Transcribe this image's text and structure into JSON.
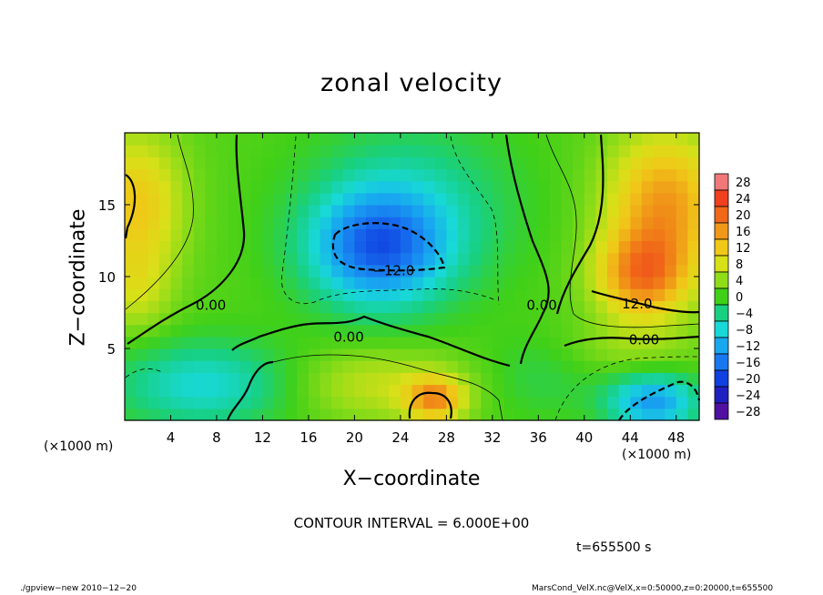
{
  "chart_data": {
    "type": "heatmap",
    "title": "zonal velocity",
    "xlabel": "X−coordinate",
    "ylabel": "Z−coordinate",
    "x_unit_left": "(×1000 m)",
    "x_unit_right": "(×1000 m)",
    "xlim": [
      0,
      50
    ],
    "ylim": [
      0,
      20
    ],
    "xticks": [
      4,
      8,
      12,
      16,
      20,
      24,
      28,
      32,
      36,
      40,
      44,
      48
    ],
    "yticks": [
      5,
      10,
      15
    ],
    "colorbar": {
      "levels": [
        28,
        24,
        20,
        16,
        12,
        8,
        4,
        0,
        -4,
        -8,
        -12,
        -16,
        -20,
        -24,
        -28
      ],
      "labels": [
        "28",
        "24",
        "20",
        "16",
        "12",
        "8",
        "4",
        "0",
        "−4",
        "−8",
        "−12",
        "−16",
        "−20",
        "−24",
        "−28"
      ],
      "colors": [
        "#f07878",
        "#f04020",
        "#f06818",
        "#f09818",
        "#f0c818",
        "#d8e018",
        "#90dc18",
        "#40d018",
        "#18d080",
        "#18d8d8",
        "#18a8f0",
        "#1878f0",
        "#1040e0",
        "#2020c0",
        "#5010a0"
      ]
    },
    "contour_labels": [
      {
        "text": "0.00",
        "x": 7.5,
        "y": 8.0
      },
      {
        "text": "0.00",
        "x": 19.5,
        "y": 5.8
      },
      {
        "text": "0.00",
        "x": 36.3,
        "y": 8.0
      },
      {
        "text": "0.00",
        "x": 45.2,
        "y": 5.6
      },
      {
        "text": "−12.0",
        "x": 23.4,
        "y": 10.4
      },
      {
        "text": "12.0",
        "x": 44.6,
        "y": 8.1
      }
    ],
    "contour_interval": "CONTOUR INTERVAL = 6.000E+00",
    "time": "t=655500 s",
    "grid": false
  },
  "footer": {
    "left": "./gpview−new  2010−12−20",
    "right": "MarsCond_VelX.nc@VelX,x=0:50000,z=0:20000,t=655500"
  }
}
